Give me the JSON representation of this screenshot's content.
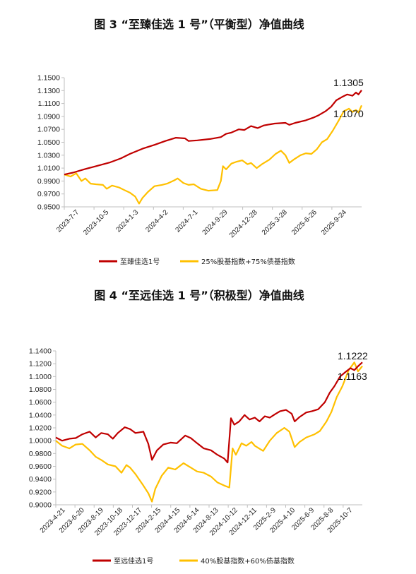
{
  "chart_data": [
    {
      "type": "line",
      "title": "图 3 “至臻佳选 1 号”（平衡型）净值曲线",
      "ylim": [
        0.95,
        1.15
      ],
      "yticks": [
        "0.9500",
        "0.9700",
        "0.9900",
        "1.0100",
        "1.0300",
        "1.0500",
        "1.0700",
        "1.0900",
        "1.1100",
        "1.1300",
        "1.1500"
      ],
      "xlim": [
        "2023-07-07",
        "2025-10-31"
      ],
      "xtick_labels": [
        "2023-7-7",
        "2023-10-5",
        "2024-1-3",
        "2024-4-2",
        "2024-7-1",
        "2024-9-29",
        "2024-12-28",
        "2025-3-28",
        "2025-6-26",
        "2025-9-24"
      ],
      "legend_position": "bottom",
      "grid": false,
      "annotations": [
        "1.1305",
        "1.1070"
      ],
      "series": [
        {
          "name": "至臻佳选1号",
          "color": "#c00000",
          "points": [
            [
              "2023-07-07",
              1.0
            ],
            [
              "2023-08-01",
              1.003
            ],
            [
              "2023-09-01",
              1.008
            ],
            [
              "2023-10-05",
              1.013
            ],
            [
              "2023-11-15",
              1.019
            ],
            [
              "2023-12-15",
              1.025
            ],
            [
              "2024-01-10",
              1.032
            ],
            [
              "2024-02-15",
              1.04
            ],
            [
              "2024-03-20",
              1.046
            ],
            [
              "2024-04-20",
              1.052
            ],
            [
              "2024-05-20",
              1.057
            ],
            [
              "2024-06-15",
              1.056
            ],
            [
              "2024-06-25",
              1.052
            ],
            [
              "2024-07-20",
              1.053
            ],
            [
              "2024-08-25",
              1.055
            ],
            [
              "2024-09-25",
              1.058
            ],
            [
              "2024-10-10",
              1.063
            ],
            [
              "2024-10-25",
              1.065
            ],
            [
              "2024-11-15",
              1.07
            ],
            [
              "2024-12-01",
              1.069
            ],
            [
              "2024-12-20",
              1.075
            ],
            [
              "2025-01-08",
              1.072
            ],
            [
              "2025-01-25",
              1.076
            ],
            [
              "2025-02-25",
              1.079
            ],
            [
              "2025-03-28",
              1.08
            ],
            [
              "2025-04-08",
              1.077
            ],
            [
              "2025-04-25",
              1.08
            ],
            [
              "2025-05-25",
              1.084
            ],
            [
              "2025-06-15",
              1.088
            ],
            [
              "2025-07-01",
              1.092
            ],
            [
              "2025-07-20",
              1.098
            ],
            [
              "2025-08-05",
              1.105
            ],
            [
              "2025-08-20",
              1.115
            ],
            [
              "2025-09-05",
              1.12
            ],
            [
              "2025-09-20",
              1.124
            ],
            [
              "2025-10-05",
              1.122
            ],
            [
              "2025-10-15",
              1.127
            ],
            [
              "2025-10-22",
              1.124
            ],
            [
              "2025-10-31",
              1.1305
            ]
          ]
        },
        {
          "name": "25%股基指数+75%债基指数",
          "color": "#ffc000",
          "points": [
            [
              "2023-07-07",
              1.0
            ],
            [
              "2023-07-25",
              0.997
            ],
            [
              "2023-08-10",
              1.002
            ],
            [
              "2023-08-25",
              0.99
            ],
            [
              "2023-09-05",
              0.994
            ],
            [
              "2023-09-20",
              0.986
            ],
            [
              "2023-10-05",
              0.985
            ],
            [
              "2023-10-25",
              0.984
            ],
            [
              "2023-11-05",
              0.978
            ],
            [
              "2023-11-20",
              0.983
            ],
            [
              "2023-12-10",
              0.98
            ],
            [
              "2023-12-25",
              0.976
            ],
            [
              "2024-01-10",
              0.972
            ],
            [
              "2024-01-25",
              0.966
            ],
            [
              "2024-02-05",
              0.955
            ],
            [
              "2024-02-15",
              0.964
            ],
            [
              "2024-03-01",
              0.973
            ],
            [
              "2024-03-20",
              0.982
            ],
            [
              "2024-04-10",
              0.984
            ],
            [
              "2024-04-25",
              0.986
            ],
            [
              "2024-05-15",
              0.991
            ],
            [
              "2024-05-25",
              0.994
            ],
            [
              "2024-06-10",
              0.987
            ],
            [
              "2024-06-25",
              0.984
            ],
            [
              "2024-07-10",
              0.985
            ],
            [
              "2024-07-30",
              0.978
            ],
            [
              "2024-08-20",
              0.975
            ],
            [
              "2024-09-15",
              0.976
            ],
            [
              "2024-09-25",
              0.99
            ],
            [
              "2024-10-01",
              1.013
            ],
            [
              "2024-10-10",
              1.008
            ],
            [
              "2024-10-25",
              1.017
            ],
            [
              "2024-11-10",
              1.02
            ],
            [
              "2024-11-25",
              1.022
            ],
            [
              "2024-12-10",
              1.016
            ],
            [
              "2024-12-20",
              1.018
            ],
            [
              "2025-01-05",
              1.01
            ],
            [
              "2025-01-20",
              1.016
            ],
            [
              "2025-02-10",
              1.023
            ],
            [
              "2025-02-28",
              1.032
            ],
            [
              "2025-03-15",
              1.037
            ],
            [
              "2025-03-28",
              1.03
            ],
            [
              "2025-04-08",
              1.018
            ],
            [
              "2025-04-20",
              1.023
            ],
            [
              "2025-05-10",
              1.03
            ],
            [
              "2025-05-25",
              1.033
            ],
            [
              "2025-06-10",
              1.032
            ],
            [
              "2025-06-25",
              1.039
            ],
            [
              "2025-07-10",
              1.05
            ],
            [
              "2025-07-25",
              1.055
            ],
            [
              "2025-08-10",
              1.068
            ],
            [
              "2025-08-25",
              1.082
            ],
            [
              "2025-09-10",
              1.098
            ],
            [
              "2025-09-25",
              1.102
            ],
            [
              "2025-10-05",
              1.097
            ],
            [
              "2025-10-15",
              1.1
            ],
            [
              "2025-10-22",
              1.096
            ],
            [
              "2025-10-31",
              1.107
            ]
          ]
        }
      ]
    },
    {
      "type": "line",
      "title": "图 4 “至远佳选 1 号”（积极型）净值曲线",
      "ylim": [
        0.9,
        1.14
      ],
      "yticks": [
        "0.9000",
        "0.9200",
        "0.9400",
        "0.9600",
        "0.9800",
        "1.0000",
        "1.0200",
        "1.0400",
        "1.0600",
        "1.0800",
        "1.1000",
        "1.1200",
        "1.1400"
      ],
      "xlim": [
        "2023-04-21",
        "2025-10-31"
      ],
      "xtick_labels": [
        "2023-4-21",
        "2023-6-20",
        "2023-8-19",
        "2023-10-18",
        "2023-12-17",
        "2024-2-15",
        "2024-4-15",
        "2024-6-14",
        "2024-8-13",
        "2024-10-12",
        "2024-12-11",
        "2025-2-9",
        "2025-4-10",
        "2025-6-9",
        "2025-8-8",
        "2025-10-7"
      ],
      "legend_position": "bottom",
      "grid": false,
      "annotations": [
        "1.1222",
        "1.1163"
      ],
      "series": [
        {
          "name": "至远佳选1号",
          "color": "#c00000",
          "points": [
            [
              "2023-04-21",
              1.005
            ],
            [
              "2023-05-10",
              1.0
            ],
            [
              "2023-06-01",
              1.003
            ],
            [
              "2023-06-20",
              1.004
            ],
            [
              "2023-07-10",
              1.01
            ],
            [
              "2023-08-01",
              1.014
            ],
            [
              "2023-08-19",
              1.005
            ],
            [
              "2023-09-05",
              1.012
            ],
            [
              "2023-09-25",
              1.01
            ],
            [
              "2023-10-10",
              1.003
            ],
            [
              "2023-10-25",
              1.012
            ],
            [
              "2023-11-15",
              1.021
            ],
            [
              "2023-12-01",
              1.018
            ],
            [
              "2023-12-17",
              1.012
            ],
            [
              "2024-01-10",
              1.014
            ],
            [
              "2024-01-25",
              0.995
            ],
            [
              "2024-02-05",
              0.97
            ],
            [
              "2024-02-20",
              0.985
            ],
            [
              "2024-03-10",
              0.994
            ],
            [
              "2024-04-01",
              0.997
            ],
            [
              "2024-04-20",
              0.996
            ],
            [
              "2024-05-15",
              1.008
            ],
            [
              "2024-06-01",
              1.004
            ],
            [
              "2024-06-20",
              0.996
            ],
            [
              "2024-07-10",
              0.988
            ],
            [
              "2024-08-01",
              0.985
            ],
            [
              "2024-08-20",
              0.978
            ],
            [
              "2024-09-10",
              0.972
            ],
            [
              "2024-09-20",
              0.966
            ],
            [
              "2024-09-30",
              1.035
            ],
            [
              "2024-10-10",
              1.025
            ],
            [
              "2024-10-25",
              1.03
            ],
            [
              "2024-11-10",
              1.04
            ],
            [
              "2024-11-25",
              1.033
            ],
            [
              "2024-12-11",
              1.036
            ],
            [
              "2024-12-25",
              1.03
            ],
            [
              "2025-01-10",
              1.038
            ],
            [
              "2025-01-25",
              1.036
            ],
            [
              "2025-02-09",
              1.041
            ],
            [
              "2025-02-25",
              1.046
            ],
            [
              "2025-03-15",
              1.048
            ],
            [
              "2025-04-01",
              1.042
            ],
            [
              "2025-04-10",
              1.03
            ],
            [
              "2025-04-25",
              1.037
            ],
            [
              "2025-05-15",
              1.044
            ],
            [
              "2025-06-01",
              1.046
            ],
            [
              "2025-06-20",
              1.049
            ],
            [
              "2025-07-10",
              1.06
            ],
            [
              "2025-07-25",
              1.075
            ],
            [
              "2025-08-08",
              1.085
            ],
            [
              "2025-08-25",
              1.1
            ],
            [
              "2025-09-10",
              1.107
            ],
            [
              "2025-09-25",
              1.113
            ],
            [
              "2025-10-07",
              1.11
            ],
            [
              "2025-10-20",
              1.117
            ],
            [
              "2025-10-31",
              1.1222
            ]
          ]
        },
        {
          "name": "40%股基指数+60%债基指数",
          "color": "#ffc000",
          "points": [
            [
              "2023-04-21",
              1.0
            ],
            [
              "2023-05-10",
              0.992
            ],
            [
              "2023-06-01",
              0.988
            ],
            [
              "2023-06-20",
              0.994
            ],
            [
              "2023-07-10",
              0.995
            ],
            [
              "2023-08-01",
              0.985
            ],
            [
              "2023-08-19",
              0.975
            ],
            [
              "2023-09-05",
              0.97
            ],
            [
              "2023-09-25",
              0.963
            ],
            [
              "2023-10-18",
              0.96
            ],
            [
              "2023-11-05",
              0.95
            ],
            [
              "2023-11-20",
              0.962
            ],
            [
              "2023-12-01",
              0.958
            ],
            [
              "2023-12-17",
              0.948
            ],
            [
              "2024-01-10",
              0.93
            ],
            [
              "2024-01-25",
              0.918
            ],
            [
              "2024-02-05",
              0.905
            ],
            [
              "2024-02-15",
              0.925
            ],
            [
              "2024-03-05",
              0.945
            ],
            [
              "2024-03-25",
              0.958
            ],
            [
              "2024-04-15",
              0.955
            ],
            [
              "2024-05-10",
              0.965
            ],
            [
              "2024-06-01",
              0.958
            ],
            [
              "2024-06-20",
              0.952
            ],
            [
              "2024-07-10",
              0.95
            ],
            [
              "2024-08-01",
              0.944
            ],
            [
              "2024-08-20",
              0.935
            ],
            [
              "2024-09-10",
              0.93
            ],
            [
              "2024-09-25",
              0.927
            ],
            [
              "2024-10-05",
              0.988
            ],
            [
              "2024-10-15",
              0.978
            ],
            [
              "2024-11-01",
              0.996
            ],
            [
              "2024-11-15",
              0.992
            ],
            [
              "2024-12-01",
              0.998
            ],
            [
              "2024-12-11",
              0.992
            ],
            [
              "2025-01-05",
              0.984
            ],
            [
              "2025-01-25",
              1.0
            ],
            [
              "2025-02-15",
              1.012
            ],
            [
              "2025-03-10",
              1.02
            ],
            [
              "2025-03-25",
              1.014
            ],
            [
              "2025-04-10",
              0.99
            ],
            [
              "2025-04-25",
              0.998
            ],
            [
              "2025-05-15",
              1.005
            ],
            [
              "2025-06-09",
              1.01
            ],
            [
              "2025-06-25",
              1.015
            ],
            [
              "2025-07-15",
              1.03
            ],
            [
              "2025-07-30",
              1.045
            ],
            [
              "2025-08-15",
              1.068
            ],
            [
              "2025-09-01",
              1.085
            ],
            [
              "2025-09-20",
              1.11
            ],
            [
              "2025-10-07",
              1.122
            ],
            [
              "2025-10-18",
              1.108
            ],
            [
              "2025-10-31",
              1.1163
            ]
          ]
        }
      ]
    }
  ]
}
